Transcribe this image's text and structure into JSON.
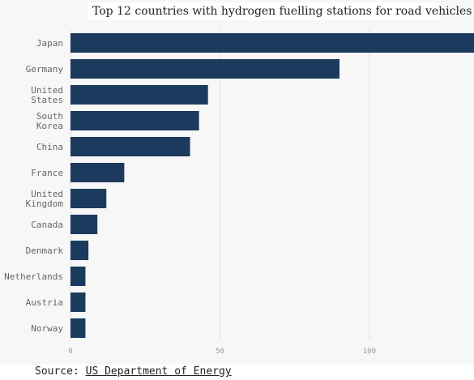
{
  "chart_data": {
    "type": "bar",
    "orientation": "horizontal",
    "title": "Top 12 countries with hydrogen fuelling stations for road vehicles",
    "categories": [
      "Japan",
      "Germany",
      "United States",
      "South Korea",
      "China",
      "France",
      "United Kingdom",
      "Canada",
      "Denmark",
      "Netherlands",
      "Austria",
      "Norway"
    ],
    "category_lines": [
      [
        "Japan"
      ],
      [
        "Germany"
      ],
      [
        "United",
        "States"
      ],
      [
        "South",
        "Korea"
      ],
      [
        "China"
      ],
      [
        "France"
      ],
      [
        "United",
        "Kingdom"
      ],
      [
        "Canada"
      ],
      [
        "Denmark"
      ],
      [
        "Netherlands"
      ],
      [
        "Austria"
      ],
      [
        "Norway"
      ]
    ],
    "values": [
      135,
      90,
      46,
      43,
      40,
      18,
      12,
      9,
      6,
      5,
      5,
      5
    ],
    "xlim": [
      0,
      135
    ],
    "xticks": [
      0,
      50,
      100
    ],
    "xlabel": "",
    "ylabel": "",
    "grid": "vertical",
    "bar_color": "#1c3a5e"
  },
  "source": {
    "label": "Source:",
    "link_text": "US Department of Energy"
  }
}
